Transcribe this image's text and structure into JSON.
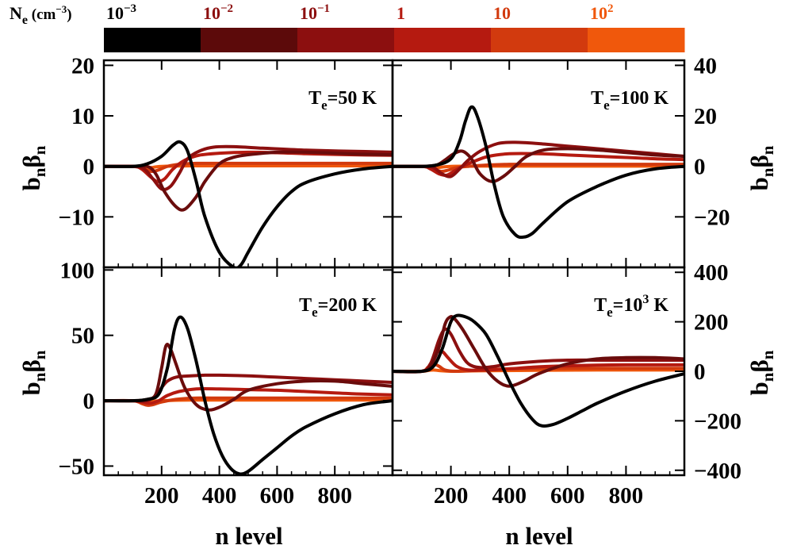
{
  "figure": {
    "ylabel_base": "b",
    "ylabel_sub1": "n",
    "ylabel_greek": "β",
    "ylabel_sub2": "n",
    "xlabel": "n level"
  },
  "colorbar": {
    "label_prefix": "N",
    "label_sub": "e",
    "label_unit": "(cm",
    "label_unit_exp": "−3",
    "label_unit_close": ")",
    "segments": [
      {
        "color": "#000000"
      },
      {
        "color": "#5c0a0a"
      },
      {
        "color": "#8c0f0f"
      },
      {
        "color": "#b51a10"
      },
      {
        "color": "#d23a0e"
      },
      {
        "color": "#f0580c"
      }
    ],
    "ticks": [
      {
        "base": "10",
        "exp": "−3",
        "color": "#000000"
      },
      {
        "base": "10",
        "exp": "−2",
        "color": "#8c0f0f"
      },
      {
        "base": "10",
        "exp": "−1",
        "color": "#8c0f0f"
      },
      {
        "base": "1",
        "exp": "",
        "color": "#b51a10"
      },
      {
        "base": "10",
        "exp": "",
        "color": "#d23a0e"
      },
      {
        "base": "10",
        "exp": "2",
        "color": "#f0580c"
      }
    ]
  },
  "chart_data": [
    {
      "type": "line",
      "panel": "top-left",
      "title_T": "T",
      "title_sub": "e",
      "title_val": "=50 K",
      "title_exp": "",
      "xlim": [
        0,
        1000
      ],
      "ylim": [
        -20,
        21
      ],
      "yticks": [
        20,
        10,
        0,
        -10
      ],
      "ytick_labels": [
        "20",
        "10",
        "0",
        "−10"
      ],
      "yaxis_side": "left",
      "xticks": [
        200,
        400,
        600,
        800
      ],
      "xtick_labels": [],
      "series": [
        {
          "name": "1e-3",
          "color": "#000000",
          "x": [
            0,
            100,
            150,
            200,
            240,
            265,
            290,
            320,
            350,
            400,
            450,
            475,
            500,
            550,
            600,
            650,
            700,
            800,
            900,
            1000
          ],
          "y": [
            0,
            0,
            0.5,
            2,
            4.2,
            4.8,
            3,
            -3,
            -10,
            -17,
            -20,
            -19.5,
            -17,
            -12,
            -8,
            -5,
            -3.2,
            -1.5,
            -0.5,
            0
          ]
        },
        {
          "name": "1e-2",
          "color": "#6a0c0c",
          "x": [
            0,
            100,
            150,
            180,
            210,
            250,
            280,
            320,
            350,
            400,
            450,
            500,
            600,
            700,
            800,
            900,
            1000
          ],
          "y": [
            0,
            0,
            0,
            -1.5,
            -5,
            -8,
            -8.5,
            -6,
            -3,
            0.5,
            1.8,
            2.3,
            2.8,
            2.8,
            2.6,
            2.4,
            2.3
          ]
        },
        {
          "name": "1e-1",
          "color": "#8c0f0f",
          "x": [
            0,
            100,
            140,
            170,
            200,
            230,
            260,
            290,
            330,
            380,
            450,
            550,
            700,
            850,
            1000
          ],
          "y": [
            0,
            0,
            -0.5,
            -2.5,
            -4.5,
            -4,
            -1.5,
            1.5,
            3,
            3.8,
            3.9,
            3.6,
            3.2,
            3,
            2.8
          ]
        },
        {
          "name": "1",
          "color": "#b51a10",
          "x": [
            0,
            100,
            130,
            160,
            185,
            210,
            240,
            280,
            330,
            400,
            500,
            600,
            700,
            850,
            1000
          ],
          "y": [
            0,
            0,
            -0.5,
            -2,
            -3,
            -2.5,
            -0.5,
            1.2,
            2.2,
            2.6,
            2.8,
            2.7,
            2.5,
            2.3,
            2.2
          ]
        },
        {
          "name": "10",
          "color": "#d23a0e",
          "x": [
            0,
            100,
            130,
            150,
            170,
            190,
            220,
            260,
            320,
            400,
            500,
            650,
            800,
            1000
          ],
          "y": [
            0,
            0,
            -0.3,
            -0.8,
            -1,
            -0.7,
            0,
            0.4,
            0.6,
            0.6,
            0.6,
            0.6,
            0.6,
            0.6
          ]
        },
        {
          "name": "1e2",
          "color": "#f0580c",
          "x": [
            0,
            100,
            130,
            150,
            170,
            200,
            300,
            500,
            700,
            1000
          ],
          "y": [
            0,
            0,
            -0.1,
            -0.3,
            -0.2,
            0,
            0.1,
            0.1,
            0.1,
            0.1
          ]
        }
      ]
    },
    {
      "type": "line",
      "panel": "top-right",
      "title_T": "T",
      "title_sub": "e",
      "title_val": "=100 K",
      "title_exp": "",
      "xlim": [
        0,
        1000
      ],
      "ylim": [
        -40,
        42
      ],
      "yticks": [
        40,
        20,
        0,
        -20
      ],
      "ytick_labels": [
        "40",
        "20",
        "0",
        "−20"
      ],
      "yaxis_side": "right",
      "xticks": [
        200,
        400,
        600,
        800
      ],
      "xtick_labels": [],
      "series": [
        {
          "name": "1e-3",
          "color": "#000000",
          "x": [
            0,
            100,
            150,
            200,
            230,
            250,
            270,
            290,
            320,
            350,
            380,
            420,
            450,
            480,
            520,
            600,
            700,
            800,
            900,
            1000
          ],
          "y": [
            0,
            0,
            0.5,
            3,
            10,
            18,
            23.5,
            20,
            8,
            -8,
            -20,
            -27,
            -28,
            -26.5,
            -22,
            -14,
            -8,
            -3.5,
            -1,
            0
          ]
        },
        {
          "name": "1e-2",
          "color": "#6a0c0c",
          "x": [
            0,
            100,
            150,
            180,
            210,
            240,
            270,
            300,
            340,
            380,
            420,
            460,
            520,
            600,
            700,
            800,
            900,
            1000
          ],
          "y": [
            0,
            0,
            0.5,
            2.5,
            5,
            6,
            3,
            -3,
            -6,
            -4,
            0,
            4,
            6.5,
            7,
            6.5,
            5.5,
            4.5,
            4
          ]
        },
        {
          "name": "1e-1",
          "color": "#8c0f0f",
          "x": [
            0,
            100,
            140,
            170,
            200,
            230,
            260,
            300,
            360,
            420,
            500,
            600,
            700,
            800,
            900,
            1000
          ],
          "y": [
            0,
            0,
            -0.5,
            -3,
            -4,
            -1,
            2.5,
            6,
            9,
            9.5,
            9,
            8,
            7,
            6,
            5,
            4
          ]
        },
        {
          "name": "1",
          "color": "#b51a10",
          "x": [
            0,
            100,
            130,
            160,
            185,
            210,
            240,
            280,
            330,
            400,
            500,
            600,
            700,
            800,
            900,
            1000
          ],
          "y": [
            0,
            0,
            -1,
            -3,
            -3.5,
            -2,
            0,
            2,
            4,
            5,
            5,
            4.5,
            4,
            3.5,
            3,
            2.7
          ]
        },
        {
          "name": "10",
          "color": "#d23a0e",
          "x": [
            0,
            100,
            130,
            150,
            170,
            190,
            220,
            260,
            320,
            400,
            500,
            650,
            800,
            1000
          ],
          "y": [
            0,
            0,
            -0.5,
            -1.5,
            -2,
            -1.5,
            -0.5,
            0,
            0.5,
            0.8,
            0.8,
            0.8,
            0.8,
            0.8
          ]
        },
        {
          "name": "1e2",
          "color": "#f0580c",
          "x": [
            0,
            100,
            130,
            150,
            170,
            200,
            300,
            500,
            700,
            1000
          ],
          "y": [
            0,
            0,
            -0.2,
            -0.5,
            -0.3,
            0,
            0.1,
            0.1,
            0.1,
            0.1
          ]
        }
      ]
    },
    {
      "type": "line",
      "panel": "bottom-left",
      "title_T": "T",
      "title_sub": "e",
      "title_val": "=200 K",
      "title_exp": "",
      "xlim": [
        0,
        1000
      ],
      "ylim": [
        -57,
        102
      ],
      "yticks": [
        100,
        50,
        0,
        -50
      ],
      "ytick_labels": [
        "100",
        "50",
        "0",
        "−50"
      ],
      "yaxis_side": "left",
      "xticks": [
        200,
        400,
        600,
        800
      ],
      "xtick_labels": [
        "200",
        "400",
        "600",
        "800"
      ],
      "series": [
        {
          "name": "1e-3",
          "color": "#000000",
          "x": [
            0,
            100,
            150,
            190,
            220,
            245,
            265,
            290,
            320,
            350,
            380,
            410,
            440,
            470,
            500,
            550,
            600,
            650,
            700,
            800,
            900,
            1000
          ],
          "y": [
            0,
            0,
            1,
            5,
            25,
            55,
            64,
            55,
            30,
            0,
            -25,
            -42,
            -52,
            -56,
            -54,
            -45,
            -36,
            -27,
            -20,
            -10,
            -3,
            0
          ]
        },
        {
          "name": "1e-2",
          "color": "#6a0c0c",
          "x": [
            0,
            100,
            150,
            180,
            200,
            215,
            230,
            250,
            280,
            320,
            360,
            400,
            450,
            500,
            600,
            700,
            800,
            900,
            1000
          ],
          "y": [
            0,
            0,
            1,
            5,
            25,
            42,
            40,
            28,
            10,
            -3,
            -7,
            -5,
            1,
            8,
            13,
            15,
            15,
            13,
            11
          ]
        },
        {
          "name": "1e-1",
          "color": "#8c0f0f",
          "x": [
            0,
            100,
            150,
            180,
            200,
            220,
            250,
            300,
            350,
            400,
            500,
            600,
            700,
            800,
            900,
            1000
          ],
          "y": [
            0,
            0,
            0,
            4,
            10,
            15,
            18,
            19,
            19.5,
            19.5,
            19,
            18,
            17,
            16,
            15,
            14
          ]
        },
        {
          "name": "1",
          "color": "#b51a10",
          "x": [
            0,
            100,
            130,
            160,
            190,
            220,
            260,
            320,
            400,
            500,
            600,
            700,
            800,
            900,
            1000
          ],
          "y": [
            0,
            0,
            -1,
            -2,
            0,
            4,
            7,
            9,
            9,
            8.5,
            8,
            7,
            6,
            5,
            4.5
          ]
        },
        {
          "name": "10",
          "color": "#d23a0e",
          "x": [
            0,
            100,
            130,
            150,
            170,
            200,
            250,
            320,
            400,
            500,
            650,
            800,
            1000
          ],
          "y": [
            0,
            0,
            -2,
            -3.5,
            -3,
            -1,
            1,
            2,
            2,
            2,
            2,
            2,
            2
          ]
        },
        {
          "name": "1e2",
          "color": "#f0580c",
          "x": [
            0,
            100,
            130,
            150,
            170,
            200,
            300,
            500,
            700,
            1000
          ],
          "y": [
            0,
            0,
            -0.5,
            -1,
            -0.5,
            0,
            0.5,
            0.5,
            0.5,
            0.5
          ]
        }
      ]
    },
    {
      "type": "line",
      "panel": "bottom-right",
      "title_T": "T",
      "title_sub": "e",
      "title_val": "=10",
      "title_exp": "3",
      "title_unit": " K",
      "xlim": [
        0,
        1000
      ],
      "ylim": [
        -420,
        420
      ],
      "yticks": [
        400,
        200,
        0,
        -200,
        -400
      ],
      "ytick_labels": [
        "400",
        "200",
        "0",
        "−200",
        "−400"
      ],
      "yaxis_side": "right",
      "xticks": [
        200,
        400,
        600,
        800
      ],
      "xtick_labels": [
        "200",
        "400",
        "600",
        "800"
      ],
      "series": [
        {
          "name": "1e-3",
          "color": "#000000",
          "x": [
            0,
            100,
            140,
            170,
            200,
            220,
            250,
            280,
            320,
            360,
            400,
            440,
            480,
            510,
            550,
            600,
            650,
            700,
            800,
            900,
            1000
          ],
          "y": [
            0,
            0,
            20,
            90,
            200,
            225,
            220,
            200,
            150,
            60,
            -40,
            -130,
            -195,
            -220,
            -215,
            -190,
            -160,
            -130,
            -80,
            -40,
            -10
          ]
        },
        {
          "name": "1e-2",
          "color": "#6a0c0c",
          "x": [
            0,
            100,
            130,
            160,
            180,
            195,
            210,
            240,
            280,
            320,
            360,
            400,
            450,
            500,
            600,
            700,
            800,
            900,
            1000
          ],
          "y": [
            0,
            0,
            20,
            100,
            190,
            218,
            215,
            170,
            90,
            10,
            -40,
            -60,
            -40,
            -10,
            30,
            50,
            55,
            55,
            50
          ]
        },
        {
          "name": "1e-1",
          "color": "#8c0f0f",
          "x": [
            0,
            100,
            130,
            160,
            180,
            200,
            230,
            260,
            300,
            350,
            400,
            500,
            600,
            700,
            800,
            900,
            1000
          ],
          "y": [
            0,
            0,
            30,
            130,
            170,
            150,
            80,
            30,
            15,
            20,
            30,
            40,
            45,
            45,
            45,
            45,
            45
          ]
        },
        {
          "name": "1",
          "color": "#b51a10",
          "x": [
            0,
            100,
            130,
            150,
            170,
            190,
            220,
            260,
            320,
            400,
            500,
            600,
            700,
            800,
            900,
            1000
          ],
          "y": [
            0,
            0,
            30,
            75,
            80,
            55,
            20,
            5,
            5,
            10,
            18,
            22,
            25,
            26,
            26,
            26
          ]
        },
        {
          "name": "10",
          "color": "#d23a0e",
          "x": [
            0,
            100,
            120,
            140,
            160,
            180,
            220,
            300,
            400,
            600,
            800,
            1000
          ],
          "y": [
            0,
            0,
            15,
            30,
            20,
            5,
            0,
            5,
            10,
            12,
            12,
            12
          ]
        },
        {
          "name": "1e2",
          "color": "#f0580c",
          "x": [
            0,
            100,
            120,
            140,
            160,
            200,
            300,
            500,
            700,
            1000
          ],
          "y": [
            0,
            0,
            3,
            5,
            3,
            0,
            2,
            4,
            5,
            5
          ]
        }
      ]
    }
  ]
}
